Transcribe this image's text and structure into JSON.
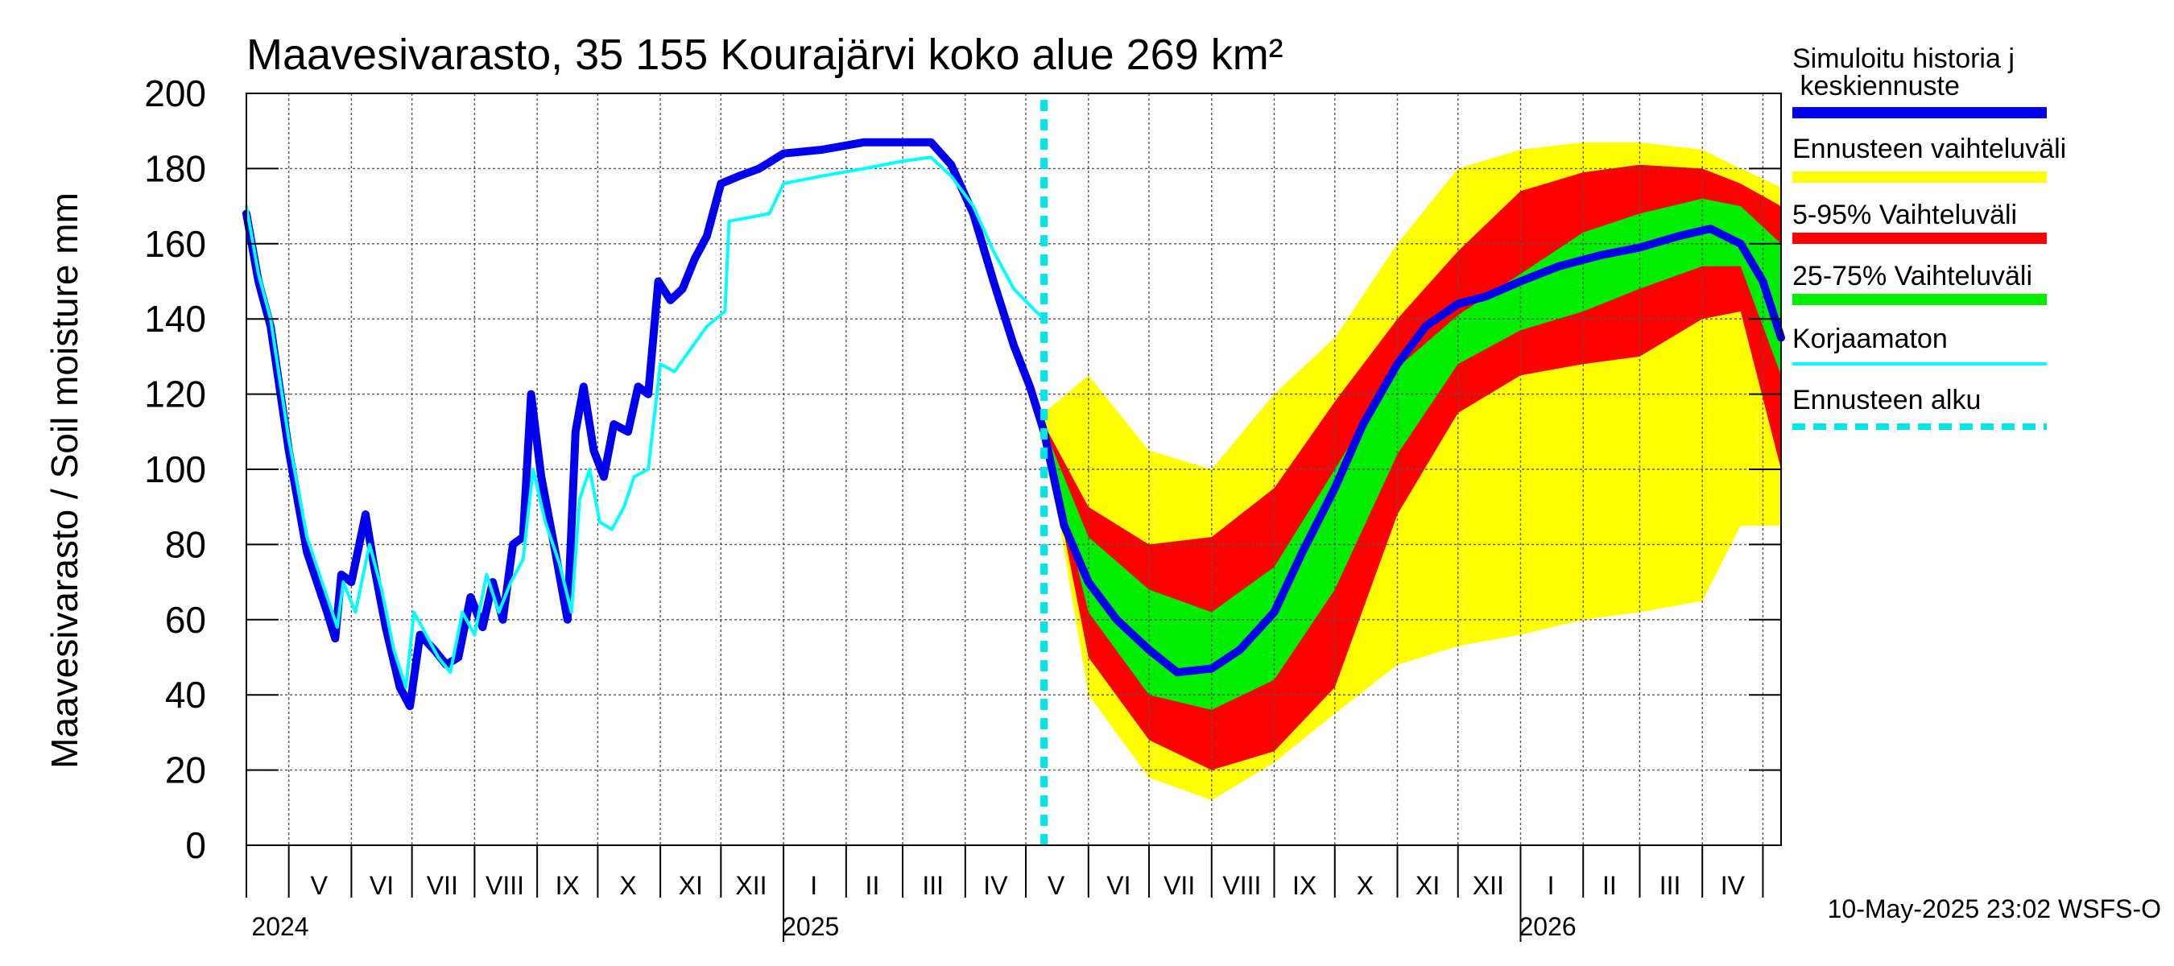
{
  "chart_data": {
    "type": "line",
    "title": "Maavesivarasto, 35 155 Kourajärvi koko alue 269 km²",
    "ylabel": "Maavesivarasto / Soil moisture   mm",
    "ylim": [
      0,
      200
    ],
    "y_ticks": [
      "0",
      "20",
      "40",
      "60",
      "80",
      "100",
      "120",
      "140",
      "160",
      "180",
      "200"
    ],
    "x_range": [
      "2024-04-10",
      "2026-05-10"
    ],
    "grid": true,
    "legend_position": "right",
    "month_labels": [
      {
        "date": "2024-05-16",
        "label": "V"
      },
      {
        "date": "2024-06-16",
        "label": "VI"
      },
      {
        "date": "2024-07-16",
        "label": "VII"
      },
      {
        "date": "2024-08-16",
        "label": "VIII"
      },
      {
        "date": "2024-09-16",
        "label": "IX"
      },
      {
        "date": "2024-10-16",
        "label": "X"
      },
      {
        "date": "2024-11-16",
        "label": "XI"
      },
      {
        "date": "2024-12-16",
        "label": "XII"
      },
      {
        "date": "2025-01-16",
        "label": "I"
      },
      {
        "date": "2025-02-14",
        "label": "II"
      },
      {
        "date": "2025-03-16",
        "label": "III"
      },
      {
        "date": "2025-04-16",
        "label": "IV"
      },
      {
        "date": "2025-05-16",
        "label": "V"
      },
      {
        "date": "2025-06-16",
        "label": "VI"
      },
      {
        "date": "2025-07-16",
        "label": "VII"
      },
      {
        "date": "2025-08-16",
        "label": "VIII"
      },
      {
        "date": "2025-09-16",
        "label": "IX"
      },
      {
        "date": "2025-10-16",
        "label": "X"
      },
      {
        "date": "2025-11-16",
        "label": "XI"
      },
      {
        "date": "2025-12-16",
        "label": "XII"
      },
      {
        "date": "2026-01-16",
        "label": "I"
      },
      {
        "date": "2026-02-14",
        "label": "II"
      },
      {
        "date": "2026-03-16",
        "label": "III"
      },
      {
        "date": "2026-04-16",
        "label": "IV"
      }
    ],
    "year_labels": [
      {
        "date": "2024-05-01",
        "label": "2024"
      },
      {
        "date": "2025-01-01",
        "label": "2025"
      },
      {
        "date": "2026-01-01",
        "label": "2026"
      }
    ],
    "forecast_start": "2025-05-10",
    "legend": [
      {
        "label": "Simuloitu historia ja keskiennuste",
        "color": "#0000ee",
        "style": "solid"
      },
      {
        "label": "Ennusteen vaihteluväli",
        "color": "#ffff00",
        "style": "solid"
      },
      {
        "label": "5-95% Vaihteluväli",
        "color": "#ff0000",
        "style": "solid"
      },
      {
        "label": "25-75% Vaihteluväli",
        "color": "#00ee00",
        "style": "solid"
      },
      {
        "label": "Korjaamaton",
        "color": "#00ffff",
        "style": "solid"
      },
      {
        "label": "Ennusteen alku",
        "color": "#00e5e5",
        "style": "dashed"
      }
    ],
    "series": [
      {
        "name": "Simuloitu historia ja keskiennuste",
        "color": "#0000ee",
        "points": [
          [
            "2024-04-10",
            168
          ],
          [
            "2024-04-16",
            150
          ],
          [
            "2024-04-22",
            138
          ],
          [
            "2024-05-01",
            105
          ],
          [
            "2024-05-10",
            78
          ],
          [
            "2024-05-20",
            62
          ],
          [
            "2024-05-24",
            55
          ],
          [
            "2024-05-27",
            72
          ],
          [
            "2024-06-01",
            70
          ],
          [
            "2024-06-08",
            88
          ],
          [
            "2024-06-12",
            75
          ],
          [
            "2024-06-18",
            58
          ],
          [
            "2024-06-25",
            42
          ],
          [
            "2024-06-30",
            37
          ],
          [
            "2024-07-05",
            56
          ],
          [
            "2024-07-12",
            52
          ],
          [
            "2024-07-18",
            48
          ],
          [
            "2024-07-24",
            50
          ],
          [
            "2024-07-30",
            66
          ],
          [
            "2024-08-05",
            58
          ],
          [
            "2024-08-10",
            70
          ],
          [
            "2024-08-15",
            60
          ],
          [
            "2024-08-20",
            80
          ],
          [
            "2024-08-25",
            82
          ],
          [
            "2024-08-29",
            120
          ],
          [
            "2024-09-03",
            98
          ],
          [
            "2024-09-10",
            78
          ],
          [
            "2024-09-16",
            60
          ],
          [
            "2024-09-20",
            110
          ],
          [
            "2024-09-24",
            122
          ],
          [
            "2024-09-29",
            105
          ],
          [
            "2024-10-04",
            98
          ],
          [
            "2024-10-09",
            112
          ],
          [
            "2024-10-16",
            110
          ],
          [
            "2024-10-21",
            122
          ],
          [
            "2024-10-26",
            120
          ],
          [
            "2024-10-31",
            150
          ],
          [
            "2024-11-06",
            145
          ],
          [
            "2024-11-12",
            148
          ],
          [
            "2024-11-18",
            156
          ],
          [
            "2024-11-24",
            162
          ],
          [
            "2024-12-01",
            176
          ],
          [
            "2024-12-10",
            178
          ],
          [
            "2024-12-20",
            180
          ],
          [
            "2025-01-01",
            184
          ],
          [
            "2025-01-20",
            185
          ],
          [
            "2025-02-10",
            187
          ],
          [
            "2025-02-28",
            187
          ],
          [
            "2025-03-15",
            187
          ],
          [
            "2025-03-25",
            181
          ],
          [
            "2025-04-05",
            168
          ],
          [
            "2025-04-15",
            150
          ],
          [
            "2025-04-25",
            133
          ],
          [
            "2025-05-03",
            122
          ],
          [
            "2025-05-10",
            110
          ],
          [
            "2025-05-20",
            85
          ],
          [
            "2025-06-01",
            70
          ],
          [
            "2025-06-15",
            60
          ],
          [
            "2025-07-01",
            52
          ],
          [
            "2025-07-15",
            46
          ],
          [
            "2025-08-01",
            47
          ],
          [
            "2025-08-15",
            52
          ],
          [
            "2025-09-01",
            62
          ],
          [
            "2025-09-15",
            78
          ],
          [
            "2025-10-01",
            95
          ],
          [
            "2025-10-15",
            112
          ],
          [
            "2025-11-01",
            128
          ],
          [
            "2025-11-15",
            138
          ],
          [
            "2025-12-01",
            144
          ],
          [
            "2025-12-15",
            146
          ],
          [
            "2026-01-01",
            150
          ],
          [
            "2026-01-20",
            154
          ],
          [
            "2026-02-10",
            157
          ],
          [
            "2026-03-01",
            159
          ],
          [
            "2026-03-20",
            162
          ],
          [
            "2026-04-05",
            164
          ],
          [
            "2026-04-20",
            160
          ],
          [
            "2026-05-01",
            150
          ],
          [
            "2026-05-10",
            135
          ]
        ]
      },
      {
        "name": "Korjaamaton",
        "color": "#00ffff",
        "points": [
          [
            "2024-04-10",
            170
          ],
          [
            "2024-04-16",
            152
          ],
          [
            "2024-04-22",
            140
          ],
          [
            "2024-05-01",
            108
          ],
          [
            "2024-05-10",
            82
          ],
          [
            "2024-05-20",
            66
          ],
          [
            "2024-05-25",
            58
          ],
          [
            "2024-05-28",
            70
          ],
          [
            "2024-06-03",
            62
          ],
          [
            "2024-06-10",
            80
          ],
          [
            "2024-06-16",
            68
          ],
          [
            "2024-06-22",
            52
          ],
          [
            "2024-06-28",
            42
          ],
          [
            "2024-07-02",
            62
          ],
          [
            "2024-07-08",
            56
          ],
          [
            "2024-07-14",
            50
          ],
          [
            "2024-07-20",
            46
          ],
          [
            "2024-07-26",
            62
          ],
          [
            "2024-08-01",
            56
          ],
          [
            "2024-08-07",
            72
          ],
          [
            "2024-08-13",
            62
          ],
          [
            "2024-08-19",
            70
          ],
          [
            "2024-08-25",
            76
          ],
          [
            "2024-08-30",
            100
          ],
          [
            "2024-09-05",
            86
          ],
          [
            "2024-09-12",
            75
          ],
          [
            "2024-09-18",
            62
          ],
          [
            "2024-09-22",
            92
          ],
          [
            "2024-09-27",
            100
          ],
          [
            "2024-10-02",
            86
          ],
          [
            "2024-10-08",
            84
          ],
          [
            "2024-10-14",
            90
          ],
          [
            "2024-10-19",
            98
          ],
          [
            "2024-10-26",
            100
          ],
          [
            "2024-11-01",
            128
          ],
          [
            "2024-11-08",
            126
          ],
          [
            "2024-11-16",
            132
          ],
          [
            "2024-11-24",
            138
          ],
          [
            "2024-12-03",
            142
          ],
          [
            "2024-12-05",
            166
          ],
          [
            "2024-12-25",
            168
          ],
          [
            "2025-01-01",
            176
          ],
          [
            "2025-01-20",
            178
          ],
          [
            "2025-02-10",
            180
          ],
          [
            "2025-03-01",
            182
          ],
          [
            "2025-03-15",
            183
          ],
          [
            "2025-03-25",
            178
          ],
          [
            "2025-04-05",
            170
          ],
          [
            "2025-04-15",
            158
          ],
          [
            "2025-04-25",
            148
          ],
          [
            "2025-05-06",
            142
          ],
          [
            "2025-05-10",
            140
          ]
        ]
      }
    ],
    "bands": [
      {
        "name": "Ennusteen vaihteluväli",
        "color": "#ffff00",
        "x": [
          "2025-05-10",
          "2025-06-01",
          "2025-07-01",
          "2025-08-01",
          "2025-09-01",
          "2025-10-01",
          "2025-11-01",
          "2025-12-01",
          "2026-01-01",
          "2026-02-01",
          "2026-03-01",
          "2026-04-01",
          "2026-04-20",
          "2026-05-10"
        ],
        "low": [
          110,
          40,
          18,
          12,
          22,
          35,
          48,
          53,
          56,
          60,
          62,
          65,
          85,
          85
        ],
        "high": [
          115,
          125,
          105,
          100,
          120,
          135,
          160,
          180,
          185,
          187,
          187,
          185,
          180,
          175
        ]
      },
      {
        "name": "5-95% Vaihteluväli",
        "color": "#ff0000",
        "x": [
          "2025-05-10",
          "2025-06-01",
          "2025-07-01",
          "2025-08-01",
          "2025-09-01",
          "2025-10-01",
          "2025-11-01",
          "2025-12-01",
          "2026-01-01",
          "2026-02-01",
          "2026-03-01",
          "2026-04-01",
          "2026-04-20",
          "2026-05-10"
        ],
        "low": [
          110,
          50,
          28,
          20,
          25,
          42,
          88,
          115,
          125,
          128,
          130,
          140,
          142,
          100
        ],
        "high": [
          112,
          90,
          80,
          82,
          95,
          118,
          140,
          158,
          174,
          179,
          181,
          180,
          176,
          170
        ]
      },
      {
        "name": "25-75% Vaihteluväli",
        "color": "#00ee00",
        "x": [
          "2025-05-10",
          "2025-06-01",
          "2025-07-01",
          "2025-08-01",
          "2025-09-01",
          "2025-10-01",
          "2025-11-01",
          "2025-12-01",
          "2026-01-01",
          "2026-02-01",
          "2026-03-01",
          "2026-04-01",
          "2026-04-20",
          "2026-05-10"
        ],
        "low": [
          110,
          62,
          40,
          36,
          44,
          68,
          104,
          128,
          137,
          142,
          148,
          154,
          154,
          125
        ],
        "high": [
          111,
          82,
          68,
          62,
          74,
          100,
          127,
          141,
          152,
          163,
          168,
          172,
          170,
          160
        ]
      }
    ],
    "footer": "10-May-2025 23:02 WSFS-O"
  }
}
